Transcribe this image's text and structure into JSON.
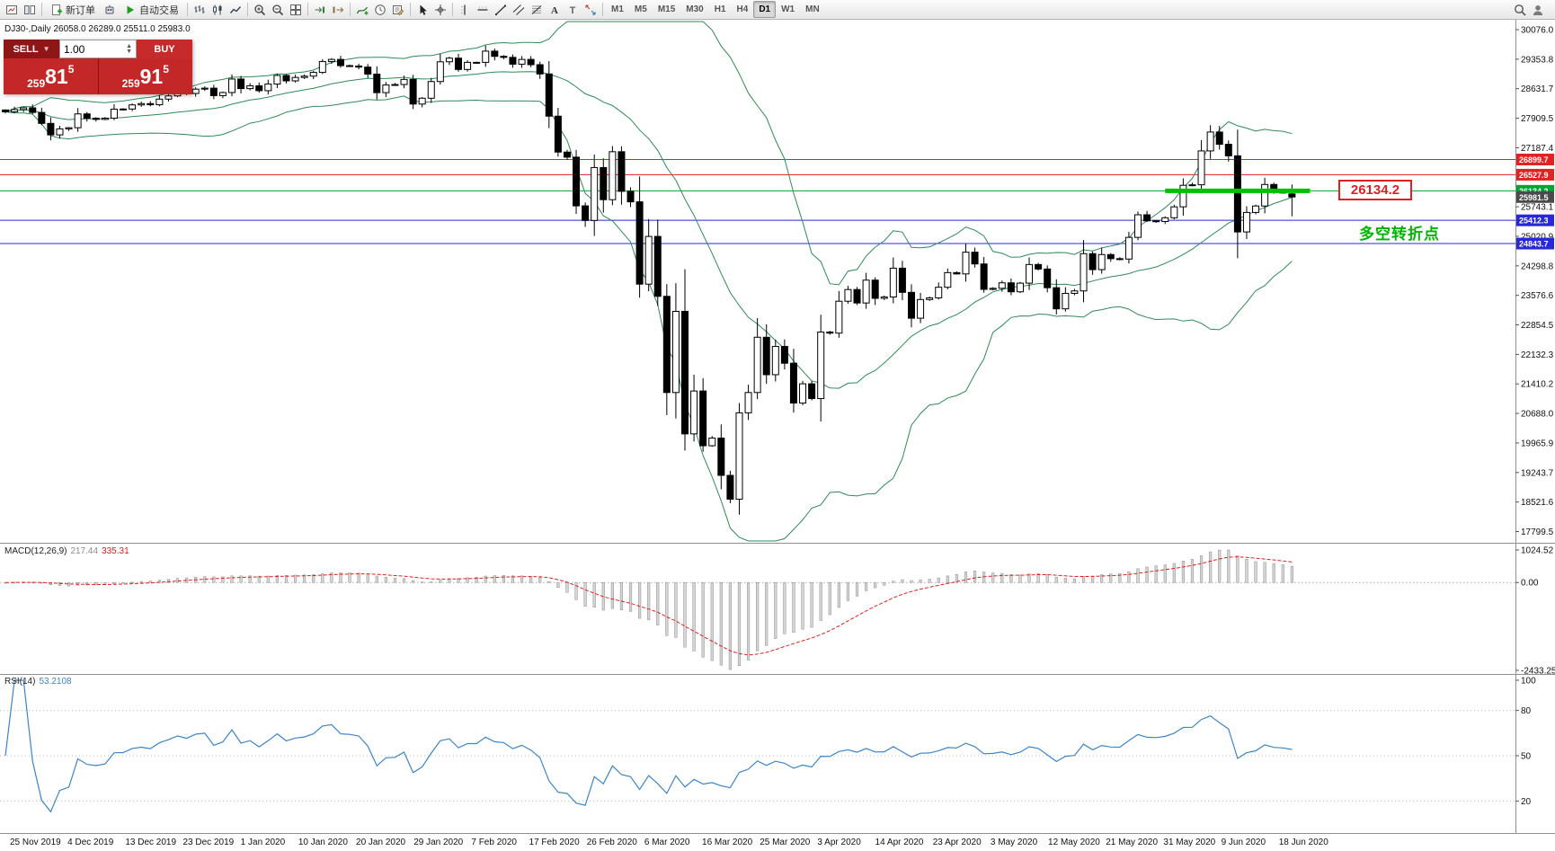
{
  "toolbar": {
    "groups": [
      {
        "items": [
          {
            "name": "chart-window-icon",
            "icon": "chartwin"
          },
          {
            "name": "market-watch-icon",
            "icon": "tile2"
          }
        ]
      },
      {
        "items": [
          {
            "name": "new-order-button",
            "icon": "neworder",
            "label": "新订单"
          },
          {
            "name": "expert-advisors-icon",
            "icon": "robot"
          },
          {
            "name": "autotrading-button",
            "icon": "play",
            "label": "自动交易"
          }
        ]
      },
      {
        "items": [
          {
            "name": "bar-chart-icon",
            "icon": "bars"
          },
          {
            "name": "candlestick-chart-icon",
            "icon": "candles"
          },
          {
            "name": "line-chart-icon",
            "icon": "linechart"
          }
        ]
      },
      {
        "items": [
          {
            "name": "zoom-in-icon",
            "icon": "zoomin"
          },
          {
            "name": "zoom-out-icon",
            "icon": "zoomout"
          },
          {
            "name": "tile-windows-icon",
            "icon": "tile4"
          }
        ]
      },
      {
        "items": [
          {
            "name": "auto-scroll-icon",
            "icon": "autoscroll"
          },
          {
            "name": "chart-shift-icon",
            "icon": "chartshift"
          }
        ]
      },
      {
        "items": [
          {
            "name": "indicators-icon",
            "icon": "indicators"
          },
          {
            "name": "periods-icon",
            "icon": "clock"
          },
          {
            "name": "templates-icon",
            "icon": "templates"
          }
        ]
      },
      {
        "items": [
          {
            "name": "cursor-icon",
            "icon": "cursor"
          },
          {
            "name": "crosshair-icon",
            "icon": "crosshair"
          }
        ]
      },
      {
        "items": [
          {
            "name": "vertical-line-icon",
            "icon": "vline"
          },
          {
            "name": "horizontal-line-icon",
            "icon": "hline"
          },
          {
            "name": "trendline-icon",
            "icon": "trendline"
          },
          {
            "name": "equidistant-channel-icon",
            "icon": "channel"
          },
          {
            "name": "fibonacci-icon",
            "icon": "fibo"
          },
          {
            "name": "text-icon",
            "icon": "textA"
          },
          {
            "name": "text-label-icon",
            "icon": "labelT"
          },
          {
            "name": "arrow-tools-icon",
            "icon": "arrows"
          }
        ]
      }
    ],
    "timeframes": [
      "M1",
      "M5",
      "M15",
      "M30",
      "H1",
      "H4",
      "D1",
      "W1",
      "MN"
    ],
    "active_timeframe": "D1",
    "right": [
      {
        "name": "search-icon",
        "icon": "search"
      },
      {
        "name": "community-icon",
        "icon": "person"
      }
    ]
  },
  "symbol_bar": {
    "text": "DJ30-,Daily  26058.0 26289.0 25511.0 25983.0"
  },
  "trade_panel": {
    "sell_label": "SELL",
    "buy_label": "BUY",
    "volume": "1.00",
    "sell_price": {
      "prefix": "259",
      "big": "81",
      "pip": "5",
      "full": "25981.5"
    },
    "buy_price": {
      "prefix": "259",
      "big": "91",
      "pip": "5",
      "full": "25991.5"
    }
  },
  "annotations": {
    "callout": {
      "text": "26134.2",
      "price": 26134.2,
      "color": "#e02020"
    },
    "turning_point": {
      "text": "多空转折点",
      "color": "#00b400"
    }
  },
  "chart_data": {
    "type": "candlestick",
    "symbol": "DJ30-",
    "timeframe": "Daily",
    "last_candle": {
      "open": 26058.0,
      "high": 26289.0,
      "low": 25511.0,
      "close": 25983.0
    },
    "closes": [
      28066,
      28121,
      28164,
      28051,
      27783,
      27502,
      27649,
      27677,
      28015,
      27909,
      27881,
      27911,
      28132,
      28135,
      28235,
      28267,
      28239,
      28377,
      28455,
      28551,
      28515,
      28621,
      28645,
      28462,
      28538,
      28868,
      28634,
      28703,
      28583,
      28745,
      28956,
      28823,
      28907,
      28939,
      29030,
      29297,
      29348,
      29196,
      29186,
      29160,
      28989,
      28535,
      28722,
      28734,
      28859,
      28256,
      28399,
      28807,
      29290,
      29379,
      29102,
      29276,
      29276,
      29551,
      29423,
      29398,
      29232,
      29348,
      29219,
      28992,
      27960,
      27081,
      26957,
      25766,
      25409,
      26703,
      25917,
      27090,
      26121,
      25864,
      23851,
      25018,
      23553,
      21200,
      23185,
      20188,
      21237,
      19898,
      20087,
      19173,
      18591,
      20704,
      21200,
      22552,
      21636,
      22327,
      21917,
      20943,
      21413,
      21052,
      22679,
      22653,
      23433,
      23719,
      23390,
      23949,
      23504,
      23537,
      24242,
      23650,
      23018,
      23475,
      23515,
      23775,
      24133,
      24101,
      24633,
      24345,
      23723,
      23749,
      23883,
      23664,
      23875,
      24331,
      24221,
      23764,
      23247,
      23625,
      23685,
      24597,
      24206,
      24575,
      24474,
      24465,
      24995,
      25548,
      25400,
      25383,
      25475,
      25742,
      26269,
      26281,
      27110,
      27572,
      27272,
      26989,
      25128,
      25605,
      25763,
      26289,
      26119,
      26080,
      25983
    ],
    "bollinger": {
      "period": 20,
      "deviation": 2,
      "color": "#2e8b57"
    },
    "price_scale": [
      30076.0,
      29353.8,
      28631.7,
      27909.5,
      27187.4,
      26465.2,
      25743.1,
      25020.9,
      24298.8,
      23576.6,
      22854.5,
      22132.3,
      21410.2,
      20688.0,
      19965.9,
      19243.7,
      18521.6,
      17799.5
    ],
    "levels": [
      {
        "price": 26899.7,
        "color": "#e22222",
        "tag": "26899.7"
      },
      {
        "price": 26527.9,
        "color": "#e22222",
        "tag": "26527.9"
      },
      {
        "price": 26134.2,
        "color": "#00a532",
        "tag": "26134.2"
      },
      {
        "price": 25412.3,
        "color": "#2828d8",
        "tag": "25412.3"
      },
      {
        "price": 24843.7,
        "color": "#2828d8",
        "tag": "24843.7"
      }
    ],
    "current_price_tag": {
      "price": 25981.5,
      "label": "25981.5",
      "color": "#4a4a4a"
    },
    "highlight": {
      "price": 26134.2,
      "from_index": 128,
      "to_index": 144,
      "color": "#00c000",
      "width": 5
    },
    "dates": [
      "25 Nov 2019",
      "4 Dec 2019",
      "13 Dec 2019",
      "23 Dec 2019",
      "1 Jan 2020",
      "10 Jan 2020",
      "20 Jan 2020",
      "29 Jan 2020",
      "7 Feb 2020",
      "17 Feb 2020",
      "26 Feb 2020",
      "6 Mar 2020",
      "16 Mar 2020",
      "25 Mar 2020",
      "3 Apr 2020",
      "14 Apr 2020",
      "23 Apr 2020",
      "3 May 2020",
      "12 May 2020",
      "21 May 2020",
      "31 May 2020",
      "9 Jun 2020",
      "18 Jun 2020"
    ],
    "macd": {
      "label": "MACD(12,26,9)",
      "fast": 12,
      "slow": 26,
      "signal": 9,
      "main_value": "217.44",
      "signal_value": "335.31",
      "scale": [
        "1024.52",
        "0.00",
        "-2433.25"
      ],
      "scale_values": [
        1024.52,
        0,
        -2433.25
      ]
    },
    "rsi": {
      "label": "RSI(14)",
      "period": 14,
      "value": "53.2108",
      "levels": [
        80,
        50,
        20
      ],
      "scale": [
        "100",
        "80",
        "50",
        "20"
      ],
      "scale_values": [
        100,
        80,
        50,
        20
      ]
    }
  }
}
